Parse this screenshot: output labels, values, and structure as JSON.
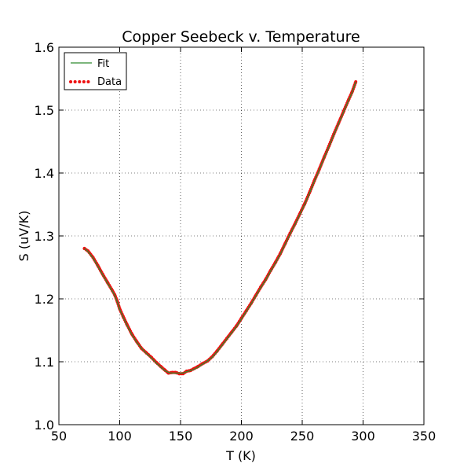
{
  "chart_data": {
    "type": "line",
    "title": "Copper Seebeck v. Temperature",
    "xlabel": "T (K)",
    "ylabel": "S (uV/K)",
    "xlim": [
      50,
      350
    ],
    "ylim": [
      1.0,
      1.6
    ],
    "x_ticks": [
      50,
      100,
      150,
      200,
      250,
      300,
      350
    ],
    "x_tick_labels": [
      "50",
      "100",
      "150",
      "200",
      "250",
      "300",
      "350"
    ],
    "y_ticks": [
      1.0,
      1.1,
      1.2,
      1.3,
      1.4,
      1.5,
      1.6
    ],
    "y_tick_labels": [
      "1.0",
      "1.1",
      "1.2",
      "1.3",
      "1.4",
      "1.5",
      "1.6"
    ],
    "grid": true,
    "legend_position": "top-left",
    "legend": [
      {
        "name": "Fit",
        "style": "line",
        "color": "#2e8b2e"
      },
      {
        "name": "Data",
        "style": "dotted",
        "color": "#ee1111"
      }
    ],
    "series": [
      {
        "name": "Fit",
        "style": "line",
        "color": "#2e8b2e",
        "x": [
          71,
          74,
          78,
          82,
          86,
          90,
          94,
          96,
          98,
          100,
          103,
          106,
          110,
          114,
          118,
          122,
          126,
          130,
          134,
          137,
          140,
          143,
          146,
          149,
          152,
          155,
          158,
          161,
          164,
          168,
          172,
          176,
          180,
          184,
          188,
          192,
          196,
          200,
          204,
          208,
          212,
          216,
          220,
          224,
          228,
          232,
          236,
          240,
          244,
          248,
          252,
          256,
          260,
          264,
          268,
          272,
          276,
          280,
          284,
          288,
          291,
          294
        ],
        "y": [
          1.28,
          1.275,
          1.265,
          1.252,
          1.238,
          1.225,
          1.212,
          1.205,
          1.195,
          1.183,
          1.17,
          1.158,
          1.143,
          1.131,
          1.121,
          1.113,
          1.106,
          1.098,
          1.091,
          1.086,
          1.083,
          1.082,
          1.082,
          1.082,
          1.082,
          1.084,
          1.086,
          1.088,
          1.091,
          1.096,
          1.101,
          1.107,
          1.116,
          1.126,
          1.136,
          1.146,
          1.156,
          1.168,
          1.18,
          1.192,
          1.205,
          1.218,
          1.23,
          1.244,
          1.257,
          1.271,
          1.287,
          1.303,
          1.318,
          1.334,
          1.35,
          1.368,
          1.387,
          1.405,
          1.424,
          1.442,
          1.461,
          1.479,
          1.497,
          1.515,
          1.528,
          1.545
        ]
      },
      {
        "name": "Data",
        "style": "dotted",
        "color": "#ee1111",
        "x": [
          71,
          74,
          78,
          82,
          86,
          90,
          94,
          96,
          98,
          100,
          103,
          106,
          110,
          114,
          118,
          122,
          126,
          130,
          134,
          137,
          140,
          143,
          146,
          149,
          152,
          155,
          158,
          161,
          164,
          168,
          172,
          176,
          180,
          184,
          188,
          192,
          196,
          200,
          204,
          208,
          212,
          216,
          220,
          224,
          228,
          232,
          236,
          240,
          244,
          248,
          252,
          256,
          260,
          264,
          268,
          272,
          276,
          280,
          284,
          288,
          291,
          294
        ],
        "y": [
          1.28,
          1.276,
          1.266,
          1.253,
          1.239,
          1.226,
          1.213,
          1.206,
          1.196,
          1.184,
          1.171,
          1.159,
          1.144,
          1.132,
          1.121,
          1.114,
          1.107,
          1.099,
          1.092,
          1.087,
          1.082,
          1.083,
          1.083,
          1.081,
          1.081,
          1.085,
          1.086,
          1.089,
          1.092,
          1.097,
          1.101,
          1.108,
          1.117,
          1.127,
          1.137,
          1.147,
          1.157,
          1.169,
          1.181,
          1.193,
          1.206,
          1.219,
          1.231,
          1.245,
          1.258,
          1.272,
          1.288,
          1.304,
          1.319,
          1.335,
          1.351,
          1.369,
          1.388,
          1.406,
          1.425,
          1.443,
          1.462,
          1.48,
          1.498,
          1.516,
          1.529,
          1.545
        ]
      }
    ]
  }
}
